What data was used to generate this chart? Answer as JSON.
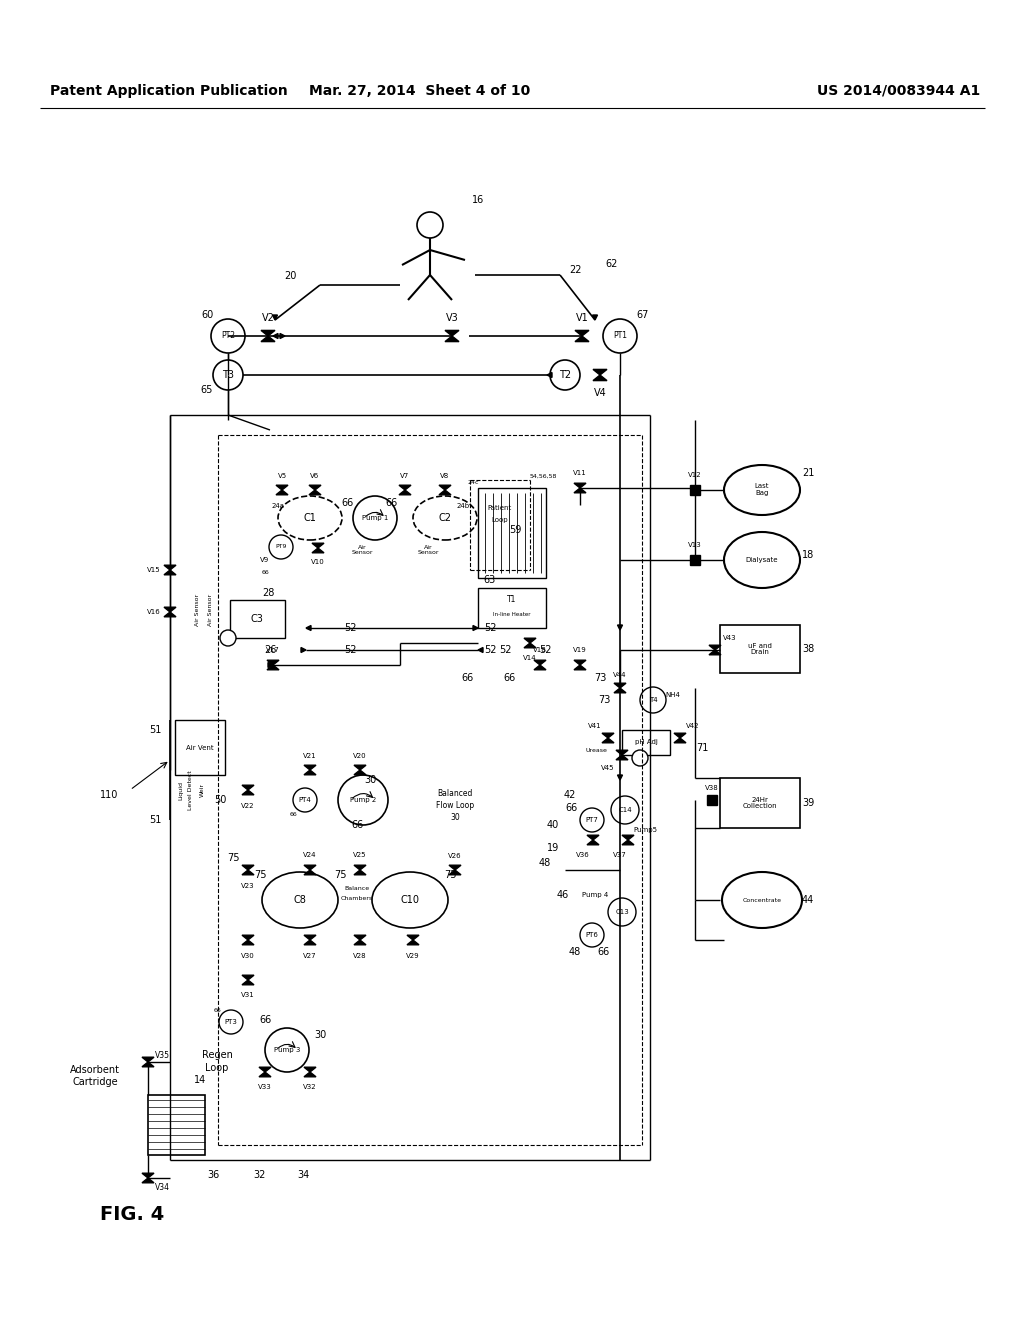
{
  "title_left": "Patent Application Publication",
  "title_mid": "Mar. 27, 2014  Sheet 4 of 10",
  "title_right": "US 2014/0083944 A1",
  "fig_label": "FIG. 4",
  "background_color": "#ffffff",
  "text_color": "#000000",
  "line_color": "#000000",
  "label_fontsize": 7,
  "fig_label_fontsize": 14,
  "header_fontsize": 10
}
